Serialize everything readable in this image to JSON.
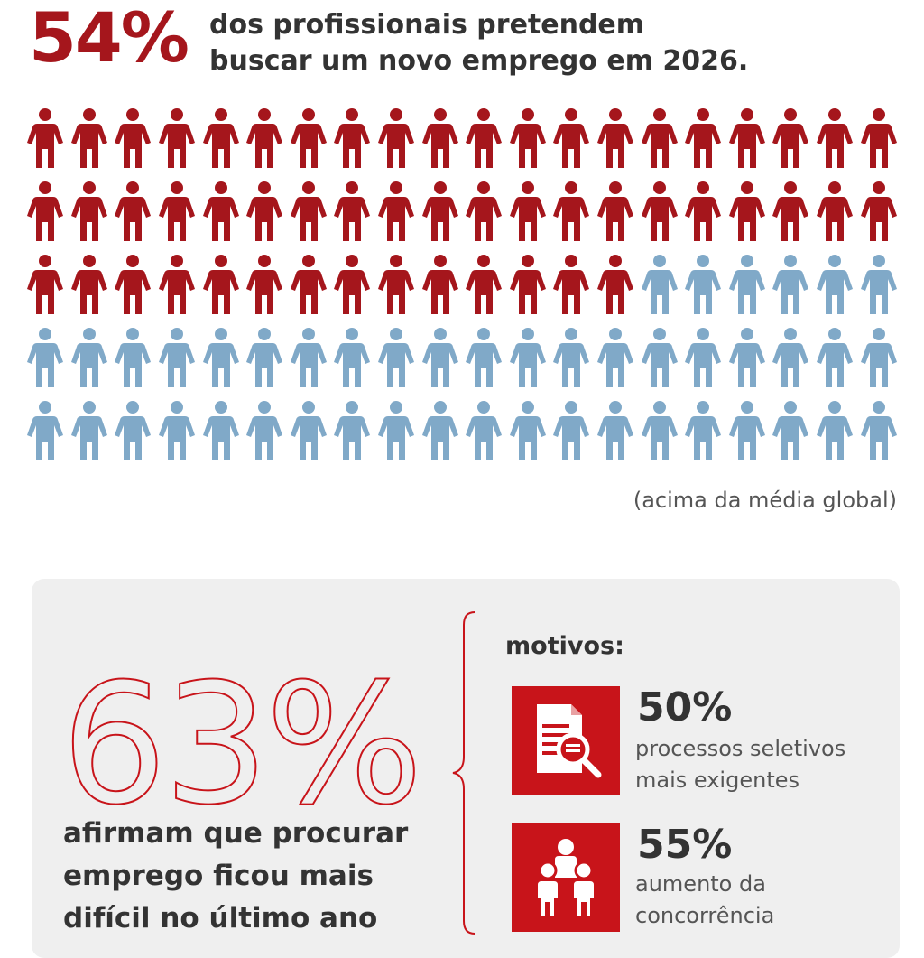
{
  "header": {
    "stat": "54%",
    "line1": "dos profissionais pretendem",
    "line2": "buscar um novo emprego em 2026."
  },
  "pictogram": {
    "total": 100,
    "highlighted": 54,
    "colors": {
      "highlighted": "#a5161c",
      "rest": "#80a9c8"
    },
    "icon": "person-icon"
  },
  "note": "(acima da média global)",
  "panel": {
    "stat": "63%",
    "claim_lines": [
      "afirmam que procurar",
      "emprego ficou mais",
      "difícil no último ano"
    ],
    "reasons_title": "motivos:",
    "reasons": [
      {
        "icon": "document-search-icon",
        "pct": "50%",
        "lines": [
          "processos seletivos",
          "mais exigentes"
        ]
      },
      {
        "icon": "people-group-icon",
        "pct": "55%",
        "lines": [
          "aumento da",
          "concorrência"
        ]
      }
    ]
  },
  "colors": {
    "accent": "#c8141a",
    "dark_red": "#a5161c",
    "text": "#333333",
    "panel_bg": "#efefef"
  }
}
